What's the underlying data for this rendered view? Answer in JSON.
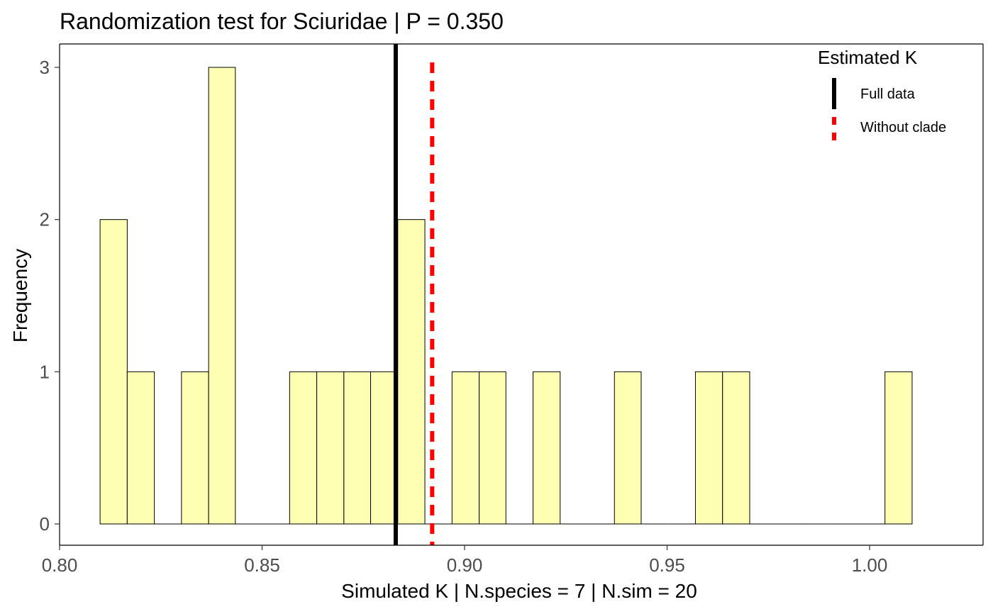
{
  "chart_data": {
    "type": "histogram",
    "title": "Randomization test for Sciuridae  | P =  0.350",
    "xlabel": "Simulated K | N.species =  7 | N.sim =  20",
    "ylabel": "Frequency",
    "xlim": [
      0.8,
      1.02
    ],
    "ylim": [
      0,
      3
    ],
    "x_ticks": [
      0.8,
      0.85,
      0.9,
      0.95,
      1.0
    ],
    "x_tick_labels": [
      "0.80",
      "0.85",
      "0.90",
      "0.95",
      "1.00"
    ],
    "y_ticks": [
      0,
      1,
      2,
      3
    ],
    "y_tick_labels": [
      "0",
      "1",
      "2",
      "3"
    ],
    "bin_width": 0.006685,
    "bins": [
      {
        "start": 0.81,
        "end": 0.8167,
        "count": 2
      },
      {
        "start": 0.8167,
        "end": 0.8234,
        "count": 1
      },
      {
        "start": 0.8234,
        "end": 0.8301,
        "count": 0
      },
      {
        "start": 0.8301,
        "end": 0.8368,
        "count": 1
      },
      {
        "start": 0.8368,
        "end": 0.8434,
        "count": 3
      },
      {
        "start": 0.8434,
        "end": 0.8501,
        "count": 0
      },
      {
        "start": 0.8501,
        "end": 0.8568,
        "count": 0
      },
      {
        "start": 0.8568,
        "end": 0.8635,
        "count": 1
      },
      {
        "start": 0.8635,
        "end": 0.8702,
        "count": 1
      },
      {
        "start": 0.8702,
        "end": 0.8768,
        "count": 1
      },
      {
        "start": 0.8768,
        "end": 0.8835,
        "count": 1
      },
      {
        "start": 0.8835,
        "end": 0.8902,
        "count": 2
      },
      {
        "start": 0.8902,
        "end": 0.8969,
        "count": 0
      },
      {
        "start": 0.8969,
        "end": 0.9036,
        "count": 1
      },
      {
        "start": 0.9036,
        "end": 0.9102,
        "count": 1
      },
      {
        "start": 0.9102,
        "end": 0.9169,
        "count": 0
      },
      {
        "start": 0.9169,
        "end": 0.9236,
        "count": 1
      },
      {
        "start": 0.9236,
        "end": 0.9303,
        "count": 0
      },
      {
        "start": 0.9303,
        "end": 0.937,
        "count": 0
      },
      {
        "start": 0.937,
        "end": 0.9436,
        "count": 1
      },
      {
        "start": 0.9436,
        "end": 0.9503,
        "count": 0
      },
      {
        "start": 0.9503,
        "end": 0.957,
        "count": 0
      },
      {
        "start": 0.957,
        "end": 0.9637,
        "count": 1
      },
      {
        "start": 0.9637,
        "end": 0.9704,
        "count": 1
      },
      {
        "start": 0.9704,
        "end": 0.977,
        "count": 0
      },
      {
        "start": 0.977,
        "end": 0.9837,
        "count": 0
      },
      {
        "start": 0.9837,
        "end": 0.9904,
        "count": 0
      },
      {
        "start": 0.9904,
        "end": 0.9971,
        "count": 0
      },
      {
        "start": 0.9971,
        "end": 1.0038,
        "count": 0
      },
      {
        "start": 1.0038,
        "end": 1.0105,
        "count": 1
      }
    ],
    "bar_fill": "#ffffb3",
    "bar_stroke": "#000000",
    "reference_lines": [
      {
        "name": "Full data",
        "x": 0.883,
        "color": "#000000",
        "style": "solid"
      },
      {
        "name": "Without clade",
        "x": 0.892,
        "color": "#ff0000",
        "style": "dashed"
      }
    ],
    "legend": {
      "title": "Estimated K",
      "position": "top-right",
      "entries": [
        "Full data",
        "Without clade"
      ]
    },
    "grid": false
  }
}
